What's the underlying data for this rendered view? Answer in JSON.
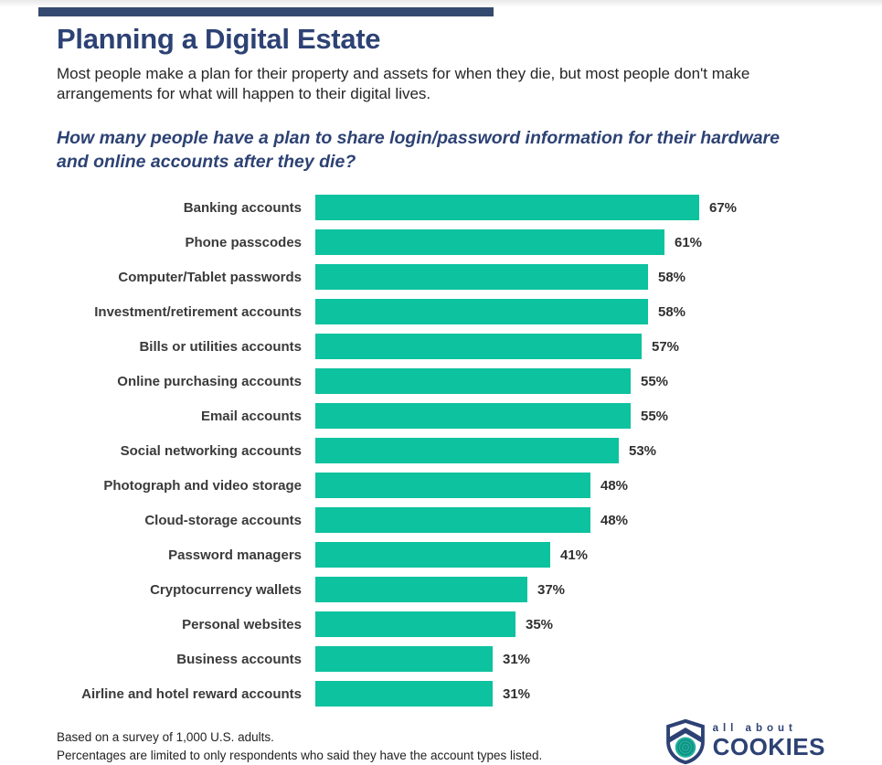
{
  "colors": {
    "bar": "#0dc29e",
    "navy": "#2d4274",
    "rule": "#344a6e",
    "text": "#2b2b2b"
  },
  "header": {
    "title": "Planning a Digital Estate",
    "subtitle": "Most people make a plan for their property and assets for when they die, but most people don't make arrangements for what will happen to their digital lives.",
    "question": "How many people have a plan to share login/password information for their hardware and online accounts after they die?"
  },
  "chart_data": {
    "type": "bar",
    "orientation": "horizontal",
    "title": "How many people have a plan to share login/password information for their hardware and online accounts after they die?",
    "categories": [
      "Banking accounts",
      "Phone passcodes",
      "Computer/Tablet passwords",
      "Investment/retirement accounts",
      "Bills or utilities accounts",
      "Online purchasing accounts",
      "Email accounts",
      "Social networking accounts",
      "Photograph and video storage",
      "Cloud-storage accounts",
      "Password managers",
      "Cryptocurrency wallets",
      "Personal websites",
      "Business accounts",
      "Airline and hotel reward accounts"
    ],
    "values": [
      67,
      61,
      58,
      58,
      57,
      55,
      55,
      53,
      48,
      48,
      41,
      37,
      35,
      31,
      31
    ],
    "value_suffix": "%",
    "xlim": [
      0,
      70
    ],
    "grid": false,
    "bar_color": "#0dc29e",
    "value_labels_position": "end-of-bar"
  },
  "footer": {
    "note1": "Based on a survey of 1,000 U.S. adults.",
    "note2": "Percentages are limited to only respondents who said they have the account types listed.",
    "logo_top": "all about",
    "logo_bottom": "COOKIES"
  }
}
